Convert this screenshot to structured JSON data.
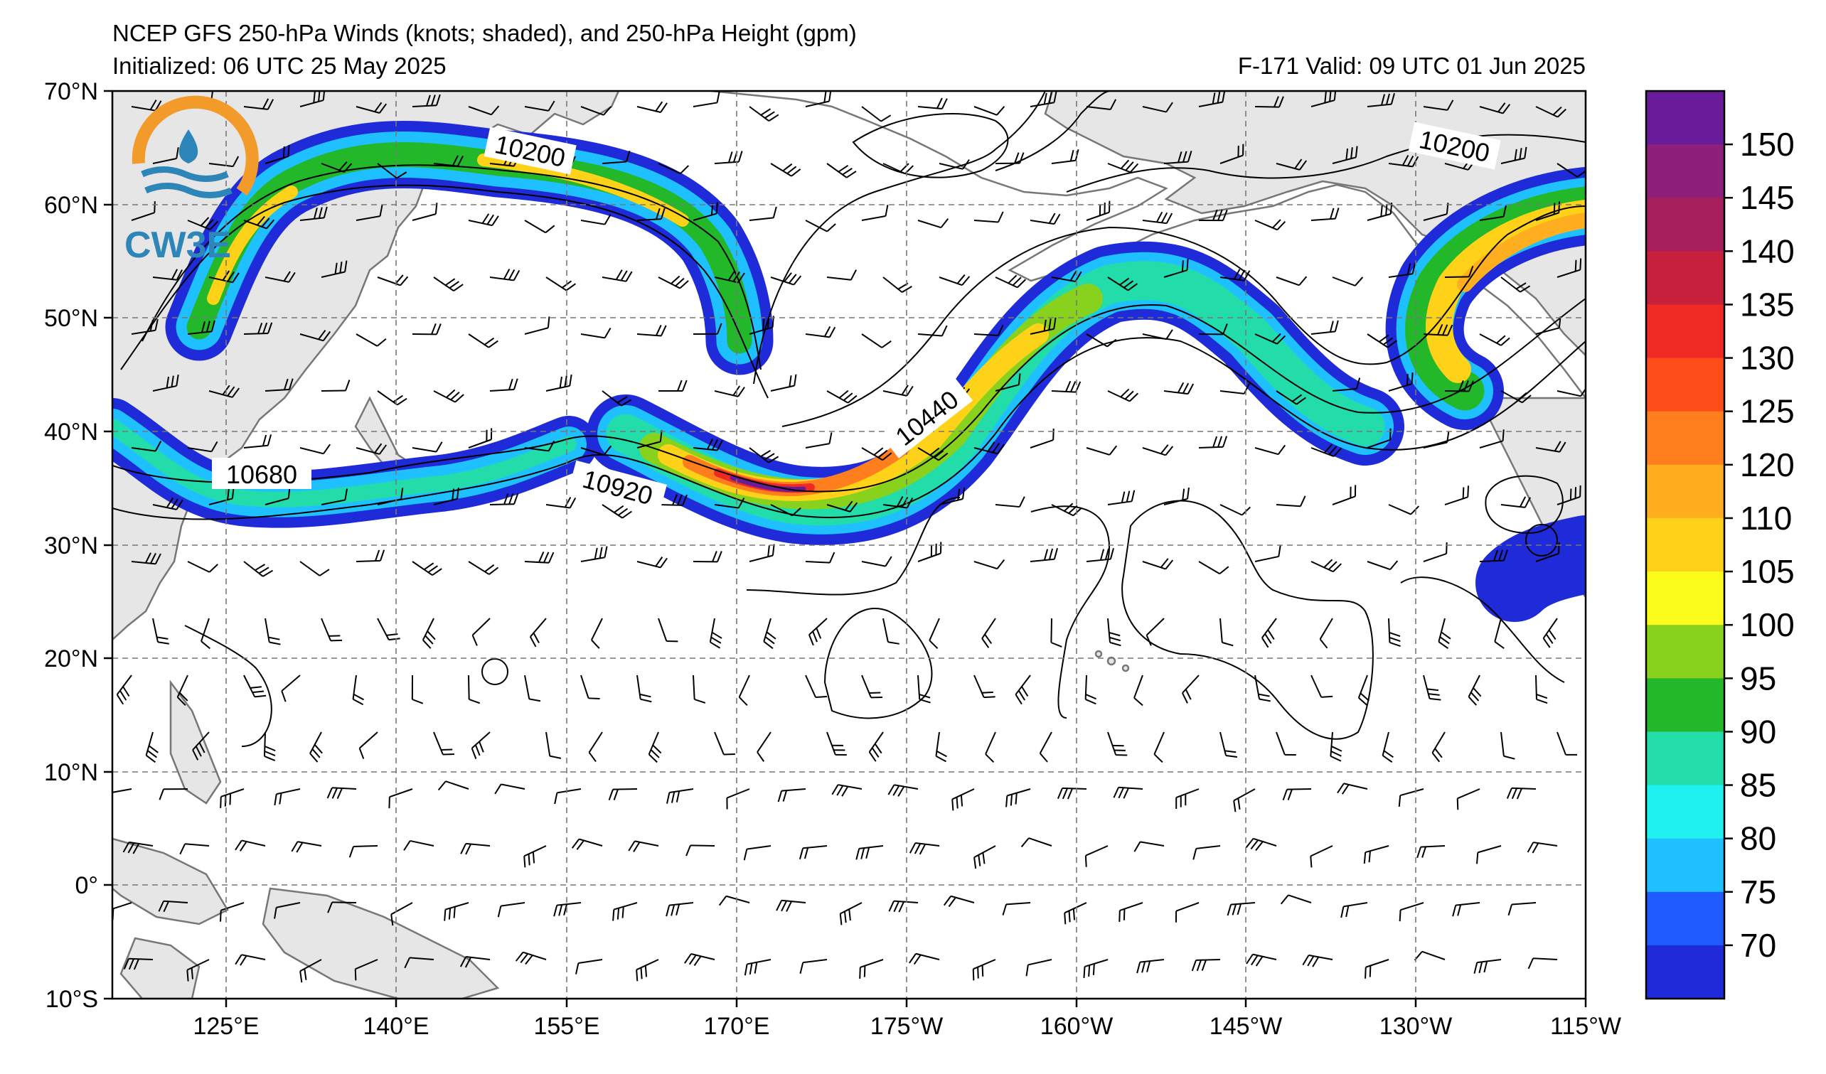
{
  "header": {
    "title": "NCEP GFS 250-hPa Winds (knots; shaded), and 250-hPa Height (gpm)",
    "initialized": "Initialized: 06 UTC 25 May 2025",
    "valid": "F-171  Valid: 09 UTC 01 Jun 2025"
  },
  "logo": {
    "text": "CW3E",
    "ring_color": "#f39b2a",
    "wave_color": "#2e86b8"
  },
  "map": {
    "lon_range": [
      110,
      245
    ],
    "lat_range": [
      -10,
      70
    ],
    "lat_labels": [
      "70°N",
      "60°N",
      "50°N",
      "40°N",
      "30°N",
      "20°N",
      "10°N",
      "0°",
      "10°S"
    ],
    "lon_labels": [
      "125°E",
      "140°E",
      "155°E",
      "170°E",
      "175°W",
      "160°W",
      "145°W",
      "130°W",
      "115°W"
    ],
    "contour_labels": [
      {
        "text": "10200",
        "lon": 155,
        "lat": 64
      },
      {
        "text": "10200",
        "lon": 232,
        "lat": 65
      },
      {
        "text": "10680",
        "lon": 123.5,
        "lat": 36
      },
      {
        "text": "10920",
        "lon": 158,
        "lat": 34.5
      },
      {
        "text": "10440",
        "lon": 184,
        "lat": 41.5
      }
    ],
    "land_color": "#e6e6e6",
    "coast_color": "#777777"
  },
  "colorbar": {
    "labels": [
      "150",
      "145",
      "140",
      "135",
      "130",
      "125",
      "120",
      "110",
      "105",
      "100",
      "95",
      "90",
      "85",
      "80",
      "75",
      "70"
    ],
    "colors": [
      "#6a1b9a",
      "#8e1f7a",
      "#a61f5c",
      "#c7203c",
      "#ef2a25",
      "#ff4d1a",
      "#ff7f1f",
      "#ffae1f",
      "#ffd21a",
      "#fbfb1c",
      "#88d21e",
      "#22b82a",
      "#22ddaa",
      "#1ff0f0",
      "#1fc0ff",
      "#1f5cff",
      "#1f2ad8"
    ]
  }
}
